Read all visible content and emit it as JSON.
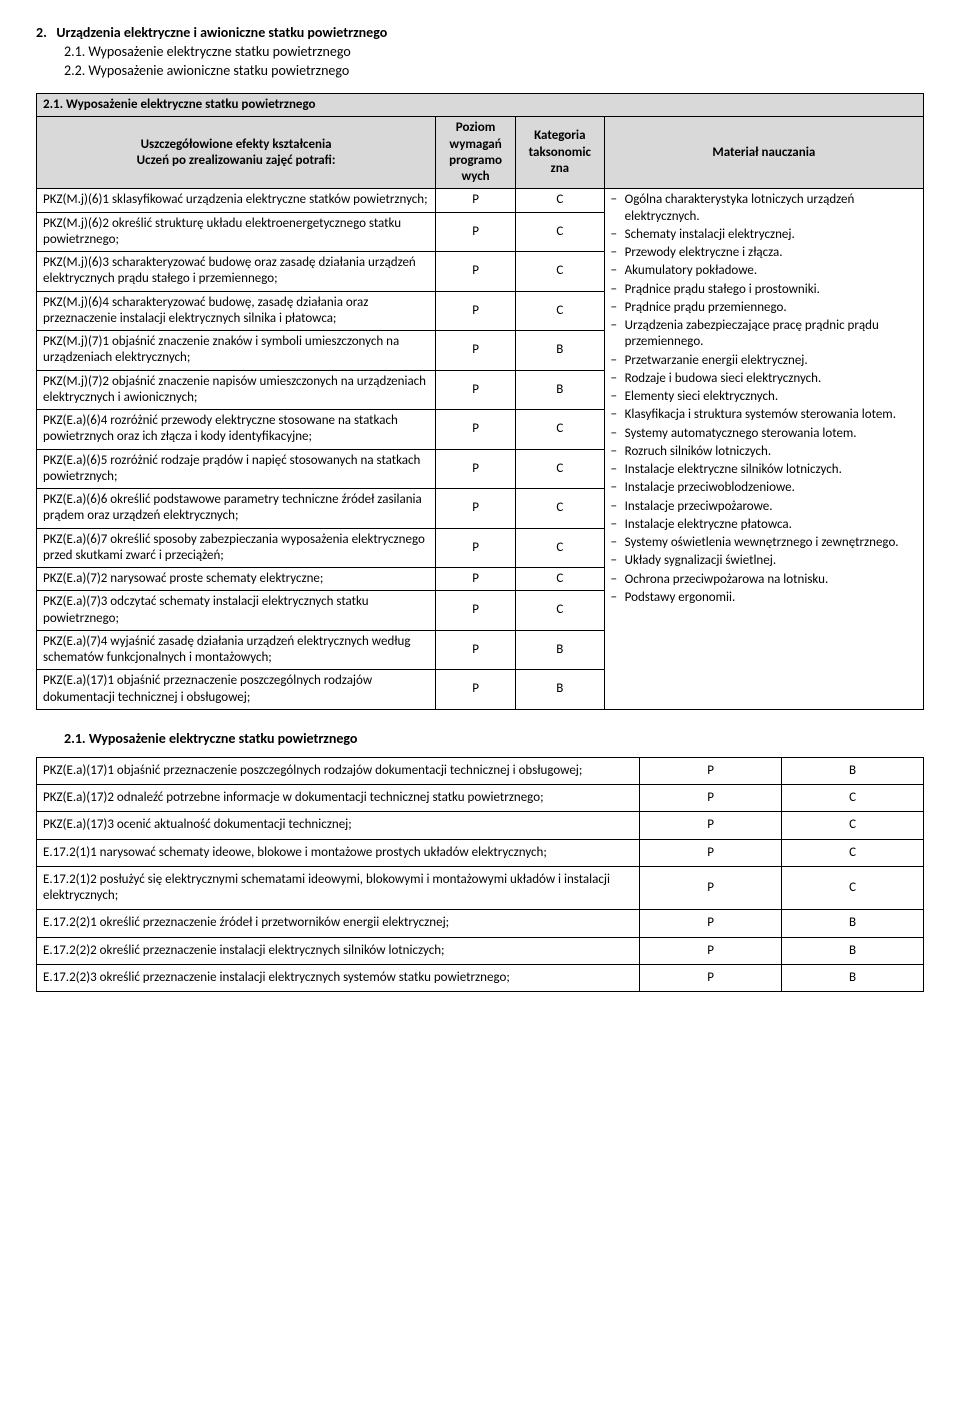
{
  "section": {
    "num": "2.",
    "title": "Urządzenia elektryczne i awioniczne statku powietrznego",
    "sub1": "2.1. Wyposażenie elektryczne statku powietrznego",
    "sub2": "2.2. Wyposażenie awioniczne statku powietrznego",
    "sub1_repeat": "2.1. Wyposażenie elektryczne statku powietrznego"
  },
  "t1": {
    "hdr_desc_top": "2.1. Wyposażenie elektryczne statku powietrznego",
    "hdr_desc_sub1": "Uszczegółowione efekty kształcenia",
    "hdr_desc_sub2": "Uczeń po zrealizowaniu zajęć potrafi:",
    "hdr_p": "Poziom wymagań programo wych",
    "hdr_k": "Kategoria taksonomic zna",
    "hdr_m": "Materiał nauczania",
    "rows": [
      {
        "d": "PKZ(M.j)(6)1 sklasyfikować urządzenia elektryczne statków powietrznych;",
        "p": "P",
        "k": "C"
      },
      {
        "d": "PKZ(M.j)(6)2 określić strukturę układu elektroenergetycznego statku powietrznego;",
        "p": "P",
        "k": "C"
      },
      {
        "d": "PKZ(M.j)(6)3 scharakteryzować budowę oraz zasadę działania urządzeń elektrycznych prądu stałego i przemiennego;",
        "p": "P",
        "k": "C"
      },
      {
        "d": "PKZ(M.j)(6)4 scharakteryzować budowę, zasadę działania oraz przeznaczenie instalacji elektrycznych silnika i płatowca;",
        "p": "P",
        "k": "C"
      },
      {
        "d": "PKZ(M.j)(7)1 objaśnić znaczenie znaków i symboli umieszczonych na urządzeniach elektrycznych;",
        "p": "P",
        "k": "B"
      },
      {
        "d": "PKZ(M.j)(7)2 objaśnić znaczenie napisów umieszczonych na urządzeniach elektrycznych i awionicznych;",
        "p": "P",
        "k": "B"
      },
      {
        "d": "PKZ(E.a)(6)4 rozróżnić przewody elektryczne stosowane na statkach powietrznych oraz ich złącza i kody identyfikacyjne;",
        "p": "P",
        "k": "C"
      },
      {
        "d": "PKZ(E.a)(6)5 rozróżnić rodzaje prądów i napięć stosowanych na statkach powietrznych;",
        "p": "P",
        "k": "C"
      },
      {
        "d": "PKZ(E.a)(6)6 określić podstawowe parametry techniczne źródeł zasilania prądem oraz urządzeń elektrycznych;",
        "p": "P",
        "k": "C"
      },
      {
        "d": "PKZ(E.a)(6)7 określić sposoby zabezpieczania wyposażenia elektrycznego przed skutkami zwarć i przeciążeń;",
        "p": "P",
        "k": "C"
      },
      {
        "d": "PKZ(E.a)(7)2 narysować proste schematy elektryczne;",
        "p": "P",
        "k": "C"
      },
      {
        "d": "PKZ(E.a)(7)3 odczytać schematy instalacji elektrycznych statku powietrznego;",
        "p": "P",
        "k": "C"
      },
      {
        "d": "PKZ(E.a)(7)4 wyjaśnić zasadę działania urządzeń elektrycznych według schematów funkcjonalnych i montażowych;",
        "p": "P",
        "k": "B"
      },
      {
        "d": "PKZ(E.a)(17)1 objaśnić przeznaczenie poszczególnych rodzajów dokumentacji technicznej i obsługowej;",
        "p": "P",
        "k": "B"
      }
    ],
    "material": [
      "Ogólna charakterystyka lotniczych urządzeń elektrycznych.",
      "Schematy instalacji elektrycznej.",
      "Przewody elektryczne i złącza.",
      "Akumulatory pokładowe.",
      "Prądnice prądu stałego i prostowniki.",
      "Prądnice prądu przemiennego.",
      "Urządzenia zabezpieczające pracę prądnic prądu przemiennego.",
      "Przetwarzanie energii elektrycznej.",
      "Rodzaje i budowa sieci elektrycznych.",
      "Elementy sieci elektrycznych.",
      "Klasyfikacja i struktura systemów sterowania lotem.",
      "Systemy automatycznego sterowania lotem.",
      "Rozruch silników lotniczych.",
      "Instalacje elektryczne silników lotniczych.",
      "Instalacje przeciwoblodzeniowe.",
      "Instalacje przeciwpożarowe.",
      "Instalacje elektryczne płatowca.",
      "Systemy oświetlenia wewnętrznego i zewnętrznego.",
      "Układy sygnalizacji świetlnej.",
      "Ochrona przeciwpożarowa na lotnisku.",
      "Podstawy ergonomii."
    ],
    "material_just_idx": {
      "10": true,
      "11": true
    }
  },
  "t2": {
    "rows": [
      {
        "d": "PKZ(E.a)(17)1 objaśnić przeznaczenie poszczególnych rodzajów dokumentacji technicznej i obsługowej;",
        "p": "P",
        "k": "B"
      },
      {
        "d": "PKZ(E.a)(17)2 odnaleźć potrzebne informacje w dokumentacji technicznej statku powietrznego;",
        "p": "P",
        "k": "C"
      },
      {
        "d": "PKZ(E.a)(17)3 ocenić aktualność dokumentacji technicznej;",
        "p": "P",
        "k": "C"
      },
      {
        "d": "E.17.2(1)1 narysować schematy ideowe, blokowe i montażowe prostych układów elektrycznych;",
        "p": "P",
        "k": "C"
      },
      {
        "d": "E.17.2(1)2 posłużyć się elektrycznymi schematami ideowymi, blokowymi i montażowymi układów i instalacji elektrycznych;",
        "p": "P",
        "k": "C"
      },
      {
        "d": "E.17.2(2)1 określić przeznaczenie źródeł i przetworników energii elektrycznej;",
        "p": "P",
        "k": "B"
      },
      {
        "d": "E.17.2(2)2 określić przeznaczenie instalacji elektrycznych silników lotniczych;",
        "p": "P",
        "k": "B"
      },
      {
        "d": "E.17.2(2)3 określić przeznaczenie instalacji elektrycznych systemów statku powietrznego;",
        "p": "P",
        "k": "B"
      }
    ]
  }
}
